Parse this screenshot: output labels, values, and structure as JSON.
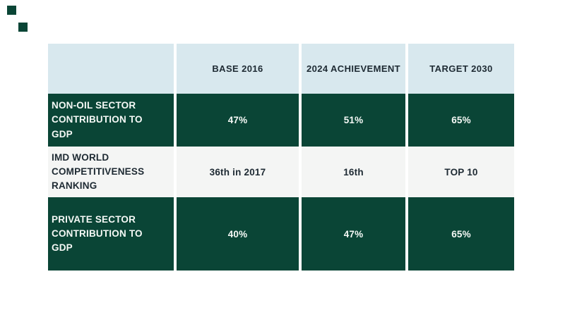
{
  "canvas": {
    "background": "#ffffff",
    "accent_squares": 2
  },
  "colors": {
    "dark_green": "#0a4536",
    "header_blue": "#d8e8ee",
    "light_row": "#f4f5f4",
    "dark_text": "#1e2a33",
    "light_text": "#f5f9f6"
  },
  "table": {
    "columns": [
      "",
      "BASE 2016",
      "2024 ACHIEVEMENT",
      "TARGET 2030"
    ],
    "rows": [
      {
        "label": "NON-OIL SECTOR CONTRIBUTION TO GDP",
        "base_2016": "47%",
        "achievement_2024": "51%",
        "target_2030": "65%",
        "theme": "dark"
      },
      {
        "label": "IMD WORLD COMPETITIVENESS RANKING",
        "base_2016": "36th in 2017",
        "achievement_2024": "16th",
        "target_2030": "TOP 10",
        "theme": "light"
      },
      {
        "label": "PRIVATE SECTOR CONTRIBUTION TO GDP",
        "base_2016": "40%",
        "achievement_2024": "47%",
        "target_2030": "65%",
        "theme": "dark"
      }
    ]
  }
}
